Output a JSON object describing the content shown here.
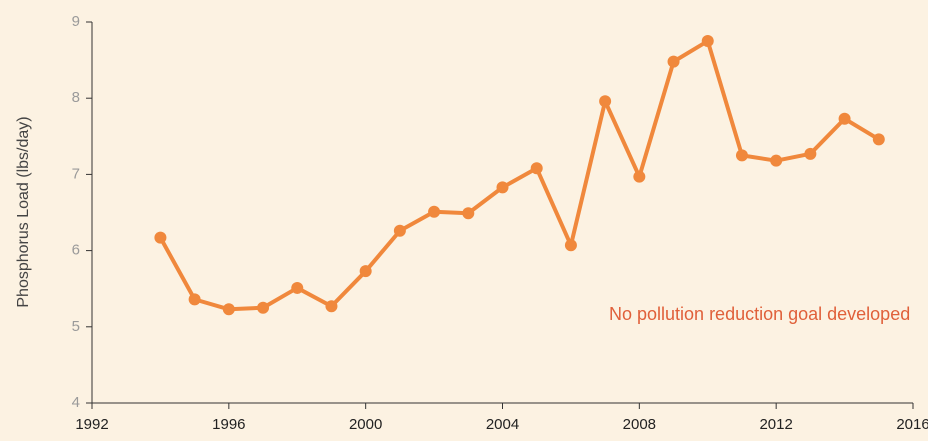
{
  "chart_data": {
    "type": "line",
    "ylabel": "Phosphorus Load (lbs/day)",
    "annotation": "No pollution reduction goal developed",
    "x": [
      1994,
      1995,
      1996,
      1997,
      1998,
      1999,
      2000,
      2001,
      2002,
      2003,
      2004,
      2005,
      2006,
      2007,
      2008,
      2009,
      2010,
      2011,
      2012,
      2013,
      2014,
      2015
    ],
    "series": [
      {
        "color": "#f0883c",
        "values": [
          6.17,
          5.36,
          5.23,
          5.25,
          5.51,
          5.27,
          5.73,
          6.26,
          6.51,
          6.49,
          6.83,
          7.08,
          6.07,
          7.96,
          6.97,
          8.48,
          8.75,
          7.25,
          7.18,
          7.27,
          7.73,
          7.46
        ]
      }
    ],
    "xlim": [
      1992,
      2016
    ],
    "xticks": [
      1992,
      1996,
      2000,
      2004,
      2008,
      2012,
      2016
    ],
    "ylim": [
      4,
      9
    ],
    "yticks": [
      4,
      5,
      6,
      7,
      8,
      9
    ],
    "grid": false
  }
}
